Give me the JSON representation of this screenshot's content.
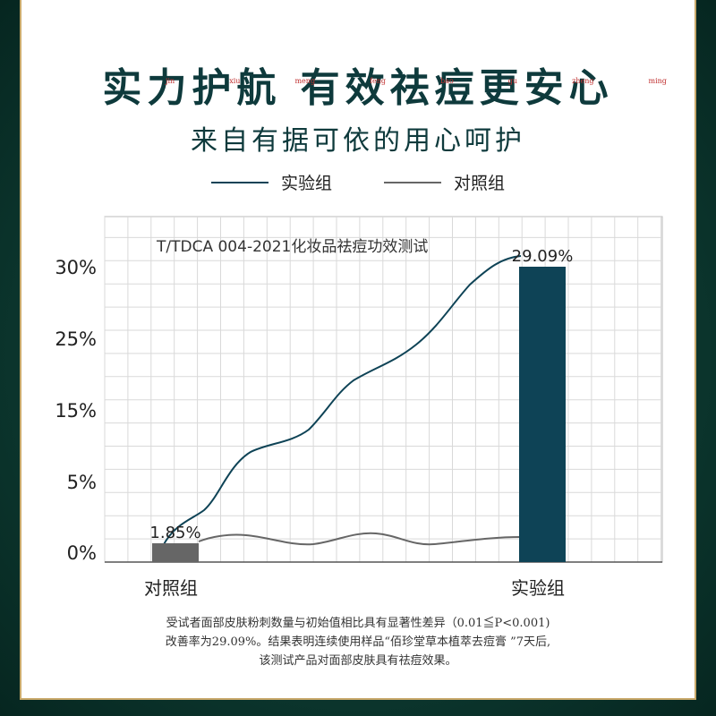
{
  "header": {
    "title": "实力护航 有效祛痘更安心",
    "pinyin": [
      "jin",
      "xiu",
      "meng",
      "feng",
      "bao",
      "gu",
      "zheng",
      "ming"
    ],
    "subtitle": "来自有据可依的用心呵护"
  },
  "legend": {
    "experimental": "实验组",
    "control": "对照组"
  },
  "colors": {
    "experimental": "#0e4356",
    "control": "#666666",
    "title": "#0e3a3c",
    "background": "#0d3a31",
    "frame": "#c8a86a"
  },
  "chart_data": {
    "type": "bar",
    "annotation": "T/TDCA 004-2021化妆品祛痘功效测试",
    "categories": [
      "对照组",
      "实验组"
    ],
    "values": [
      1.85,
      29.09
    ],
    "value_labels": [
      "1.85%",
      "29.09%"
    ],
    "series_colors": [
      "#666666",
      "#0e4356"
    ],
    "ytick_labels": [
      "0%",
      "5%",
      "15%",
      "25%",
      "30%"
    ],
    "grid": true,
    "curves": [
      {
        "name": "实验组",
        "color": "#0e4356"
      },
      {
        "name": "对照组",
        "color": "#666666"
      }
    ]
  },
  "footnote": {
    "line1": "受试者面部皮肤粉刺数量与初始值相比具有显著性差异（0.01≦P<0.001)",
    "line2": "改善率为29.09%。结果表明连续使用样品“佰珍堂草本植萃去痘膏 ”7天后,",
    "line3": "该测试产品对面部皮肤具有祛痘效果。"
  }
}
